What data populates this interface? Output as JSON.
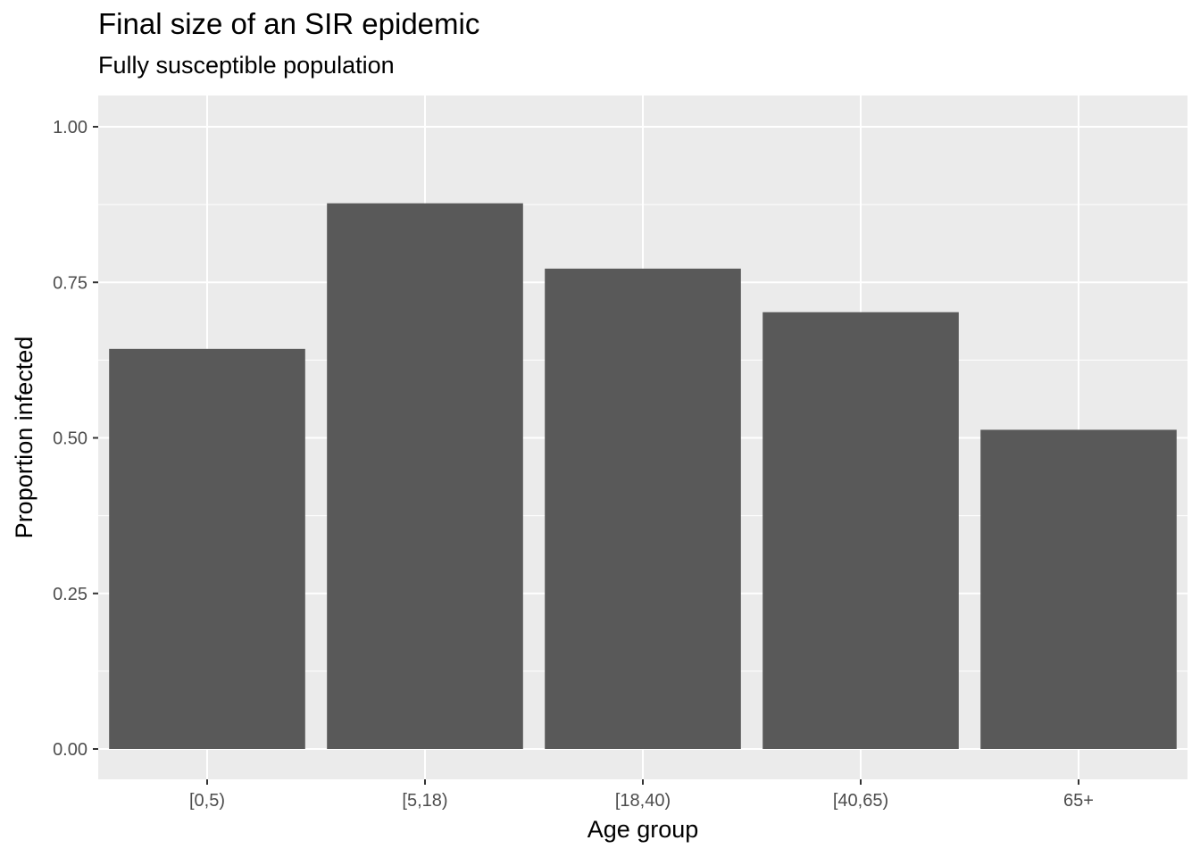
{
  "chart_data": {
    "type": "bar",
    "title": "Final size of an SIR epidemic",
    "subtitle": "Fully susceptible population",
    "xlabel": "Age group",
    "ylabel": "Proportion infected",
    "categories": [
      "[0,5)",
      "[5,18)",
      "[18,40)",
      "[40,65)",
      "65+"
    ],
    "values": [
      0.643,
      0.877,
      0.772,
      0.702,
      0.513
    ],
    "ylim": [
      0,
      1
    ],
    "yticks": [
      0,
      0.25,
      0.5,
      0.75,
      1
    ],
    "ytick_labels": [
      "0.00",
      "0.25",
      "0.50",
      "0.75",
      "1.00"
    ],
    "grid": true,
    "legend": "none",
    "colors": {
      "panel": "#ebebeb",
      "grid_major": "#ffffff",
      "bar": "#595959",
      "tick": "#333333",
      "tick_text": "#4d4d4d"
    }
  }
}
